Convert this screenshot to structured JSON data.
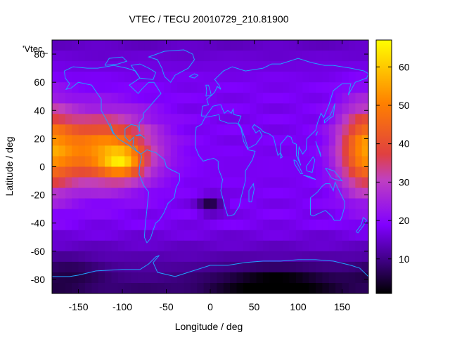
{
  "chart_data": {
    "type": "heatmap",
    "title": "VTEC / TECU 20010729_210.81900",
    "legend_label": "'Vtec_",
    "xlabel": "Longitude / deg",
    "ylabel": "Latitude / deg",
    "xlim": [
      -180,
      180
    ],
    "ylim": [
      -90,
      90
    ],
    "xticks": [
      -150,
      -100,
      -50,
      0,
      50,
      100,
      150
    ],
    "yticks": [
      -80,
      -60,
      -40,
      -20,
      0,
      20,
      40,
      60,
      80
    ],
    "colorbar": {
      "range": [
        1,
        67
      ],
      "ticks": [
        10,
        20,
        30,
        40,
        50,
        60
      ],
      "palette": [
        "#000000",
        "#3a007a",
        "#8000ff",
        "#c040c0",
        "#e04040",
        "#ff8000",
        "#ffff00"
      ]
    },
    "overlay": "coastlines",
    "coastline_color": "#20a0ff",
    "features": [
      {
        "name": "equatorial-anomaly-americas",
        "lon": -100,
        "lat": 5,
        "value": 64
      },
      {
        "name": "equatorial-band-east",
        "lon": 170,
        "lat": 10,
        "value": 45
      },
      {
        "name": "south-atlantic-minimum",
        "lon": 0,
        "lat": -27,
        "value": 2
      },
      {
        "name": "antarctic-minimum",
        "lon": 80,
        "lat": -82,
        "value": 2
      }
    ]
  }
}
